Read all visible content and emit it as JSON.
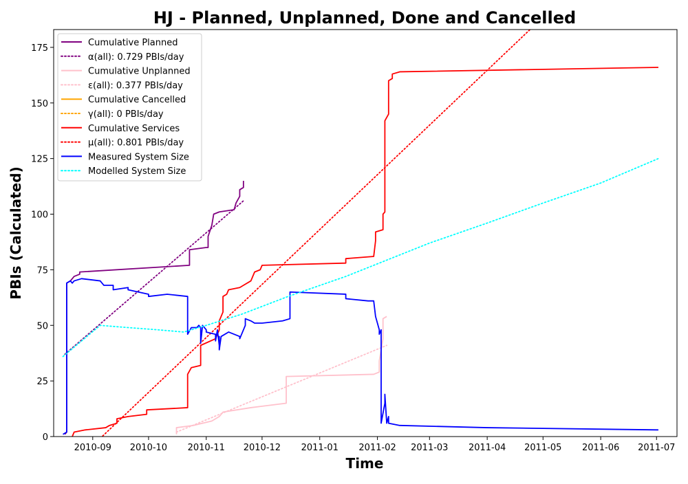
{
  "chart_data": {
    "type": "line",
    "title": "HJ - Planned, Unplanned, Done  and Cancelled",
    "xlabel": "Time",
    "ylabel": "PBIs (Calculated)",
    "xlim": [
      "2010-08-11",
      "2011-07-12"
    ],
    "ylim": [
      0,
      183
    ],
    "x_ticks": [
      {
        "date": "2010-09-01",
        "label": "2010-09"
      },
      {
        "date": "2010-10-01",
        "label": "2010-10"
      },
      {
        "date": "2010-11-01",
        "label": "2010-11"
      },
      {
        "date": "2010-12-01",
        "label": "2010-12"
      },
      {
        "date": "2011-01-01",
        "label": "2011-01"
      },
      {
        "date": "2011-02-01",
        "label": "2011-02"
      },
      {
        "date": "2011-03-01",
        "label": "2011-03"
      },
      {
        "date": "2011-04-01",
        "label": "2011-04"
      },
      {
        "date": "2011-05-01",
        "label": "2011-05"
      },
      {
        "date": "2011-06-01",
        "label": "2011-06"
      },
      {
        "date": "2011-07-01",
        "label": "2011-07"
      }
    ],
    "y_ticks": [
      {
        "value": 0,
        "label": "0"
      },
      {
        "value": 25,
        "label": "25"
      },
      {
        "value": 50,
        "label": "50"
      },
      {
        "value": 75,
        "label": "75"
      },
      {
        "value": 100,
        "label": "100"
      },
      {
        "value": 125,
        "label": "125"
      },
      {
        "value": 150,
        "label": "150"
      },
      {
        "value": 175,
        "label": "175"
      }
    ],
    "legend_position": "top-left",
    "series": [
      {
        "name": "Cumulative Planned",
        "color": "#800080",
        "style": "solid",
        "width": 1.8,
        "points": [
          [
            "2010-08-17",
            1
          ],
          [
            "2010-08-18",
            2
          ],
          [
            "2010-08-18",
            69
          ],
          [
            "2010-08-20",
            70
          ],
          [
            "2010-08-22",
            72
          ],
          [
            "2010-08-25",
            73
          ],
          [
            "2010-08-25",
            74
          ],
          [
            "2010-10-23",
            77
          ],
          [
            "2010-10-23",
            84
          ],
          [
            "2010-11-01",
            85
          ],
          [
            "2010-11-02",
            85
          ],
          [
            "2010-11-02",
            90
          ],
          [
            "2010-11-04",
            95
          ],
          [
            "2010-11-05",
            100
          ],
          [
            "2010-11-08",
            101
          ],
          [
            "2010-11-16",
            102
          ],
          [
            "2010-11-17",
            105
          ],
          [
            "2010-11-19",
            108
          ],
          [
            "2010-11-19",
            111
          ],
          [
            "2010-11-21",
            112
          ],
          [
            "2010-11-21",
            115
          ]
        ]
      },
      {
        "name": "α(all): 0.729 PBIs/day",
        "color": "#800080",
        "style": "dotted",
        "width": 1.8,
        "points": [
          [
            "2010-08-17",
            37
          ],
          [
            "2010-11-21",
            106
          ]
        ]
      },
      {
        "name": "Cumulative Unplanned",
        "color": "#ffc0cb",
        "style": "solid",
        "width": 1.8,
        "points": [
          [
            "2010-10-16",
            1
          ],
          [
            "2010-10-16",
            4
          ],
          [
            "2010-10-25",
            5
          ],
          [
            "2010-11-04",
            7
          ],
          [
            "2010-11-06",
            8
          ],
          [
            "2010-11-08",
            9
          ],
          [
            "2010-11-10",
            11
          ],
          [
            "2010-11-25",
            13
          ],
          [
            "2010-12-14",
            15
          ],
          [
            "2010-12-14",
            27
          ],
          [
            "2011-01-30",
            28
          ],
          [
            "2011-02-02",
            29
          ],
          [
            "2011-02-02",
            34
          ],
          [
            "2011-02-04",
            44
          ],
          [
            "2011-02-04",
            53
          ],
          [
            "2011-02-06",
            54
          ]
        ]
      },
      {
        "name": "ε(all): 0.377 PBIs/day",
        "color": "#ffc0cb",
        "style": "dotted",
        "width": 1.8,
        "points": [
          [
            "2010-10-16",
            2
          ],
          [
            "2011-02-06",
            41
          ]
        ]
      },
      {
        "name": "Cumulative Cancelled",
        "color": "#ffa500",
        "style": "solid",
        "width": 1.8,
        "points": []
      },
      {
        "name": "γ(all): 0 PBIs/day",
        "color": "#ffa500",
        "style": "dotted",
        "width": 1.8,
        "points": []
      },
      {
        "name": "Cumulative Services",
        "color": "#ff0000",
        "style": "solid",
        "width": 1.8,
        "points": [
          [
            "2010-08-21",
            0
          ],
          [
            "2010-08-22",
            2
          ],
          [
            "2010-08-28",
            3
          ],
          [
            "2010-09-08",
            4
          ],
          [
            "2010-09-10",
            5
          ],
          [
            "2010-09-14",
            6
          ],
          [
            "2010-09-14",
            8
          ],
          [
            "2010-09-20",
            9
          ],
          [
            "2010-09-30",
            10
          ],
          [
            "2010-09-30",
            12
          ],
          [
            "2010-10-22",
            13
          ],
          [
            "2010-10-22",
            28
          ],
          [
            "2010-10-24",
            31
          ],
          [
            "2010-10-29",
            32
          ],
          [
            "2010-10-29",
            41
          ],
          [
            "2010-11-06",
            44
          ],
          [
            "2010-11-08",
            48
          ],
          [
            "2010-11-08",
            52
          ],
          [
            "2010-11-10",
            56
          ],
          [
            "2010-11-10",
            63
          ],
          [
            "2010-11-12",
            64
          ],
          [
            "2010-11-13",
            66
          ],
          [
            "2010-11-19",
            67
          ],
          [
            "2010-11-21",
            68
          ],
          [
            "2010-11-25",
            70
          ],
          [
            "2010-11-27",
            74
          ],
          [
            "2010-11-30",
            75
          ],
          [
            "2010-12-01",
            77
          ],
          [
            "2011-01-15",
            78
          ],
          [
            "2011-01-15",
            80
          ],
          [
            "2011-01-30",
            81
          ],
          [
            "2011-01-31",
            88
          ],
          [
            "2011-01-31",
            92
          ],
          [
            "2011-02-04",
            93
          ],
          [
            "2011-02-04",
            100
          ],
          [
            "2011-02-05",
            101
          ],
          [
            "2011-02-05",
            142
          ],
          [
            "2011-02-07",
            145
          ],
          [
            "2011-02-07",
            160
          ],
          [
            "2011-02-09",
            161
          ],
          [
            "2011-02-09",
            163
          ],
          [
            "2011-02-13",
            164
          ],
          [
            "2011-07-02",
            166
          ]
        ]
      },
      {
        "name": "μ(all): 0.801 PBIs/day",
        "color": "#ff0000",
        "style": "dotted",
        "width": 1.8,
        "points": [
          [
            "2010-09-01",
            -4
          ],
          [
            "2011-04-24",
            183
          ]
        ]
      },
      {
        "name": "Measured System Size",
        "color": "#0000ff",
        "style": "solid",
        "width": 1.8,
        "points": [
          [
            "2010-08-16",
            1
          ],
          [
            "2010-08-18",
            2
          ],
          [
            "2010-08-18",
            69
          ],
          [
            "2010-08-20",
            70
          ],
          [
            "2010-08-21",
            69
          ],
          [
            "2010-08-22",
            70
          ],
          [
            "2010-08-26",
            71
          ],
          [
            "2010-09-05",
            70
          ],
          [
            "2010-09-07",
            68
          ],
          [
            "2010-09-12",
            68
          ],
          [
            "2010-09-12",
            66
          ],
          [
            "2010-09-20",
            67
          ],
          [
            "2010-09-20",
            66
          ],
          [
            "2010-10-01",
            64
          ],
          [
            "2010-10-01",
            63
          ],
          [
            "2010-10-11",
            64
          ],
          [
            "2010-10-22",
            63
          ],
          [
            "2010-10-22",
            48
          ],
          [
            "2010-10-22",
            46
          ],
          [
            "2010-10-24",
            49
          ],
          [
            "2010-10-27",
            49
          ],
          [
            "2010-10-28",
            50
          ],
          [
            "2010-10-29",
            49
          ],
          [
            "2010-10-29",
            42
          ],
          [
            "2010-10-30",
            50
          ],
          [
            "2010-11-01",
            48
          ],
          [
            "2010-11-01",
            47
          ],
          [
            "2010-11-06",
            46
          ],
          [
            "2010-11-06",
            43
          ],
          [
            "2010-11-07",
            48
          ],
          [
            "2010-11-08",
            41
          ],
          [
            "2010-11-08",
            45
          ],
          [
            "2010-11-08",
            39
          ],
          [
            "2010-11-09",
            45
          ],
          [
            "2010-11-13",
            47
          ],
          [
            "2010-11-16",
            46
          ],
          [
            "2010-11-19",
            45
          ],
          [
            "2010-11-19",
            44
          ],
          [
            "2010-11-22",
            50
          ],
          [
            "2010-11-22",
            53
          ],
          [
            "2010-11-25",
            52
          ],
          [
            "2010-11-27",
            51
          ],
          [
            "2010-12-01",
            51
          ],
          [
            "2010-12-12",
            52
          ],
          [
            "2010-12-16",
            53
          ],
          [
            "2010-12-16",
            65
          ],
          [
            "2011-01-15",
            64
          ],
          [
            "2011-01-15",
            62
          ],
          [
            "2011-01-27",
            61
          ],
          [
            "2011-01-30",
            61
          ],
          [
            "2011-01-31",
            54
          ],
          [
            "2011-02-01",
            51
          ],
          [
            "2011-02-02",
            48
          ],
          [
            "2011-02-02",
            46
          ],
          [
            "2011-02-03",
            48
          ],
          [
            "2011-02-03",
            6
          ],
          [
            "2011-02-05",
            15
          ],
          [
            "2011-02-05",
            19
          ],
          [
            "2011-02-06",
            6
          ],
          [
            "2011-02-07",
            9
          ],
          [
            "2011-02-07",
            6
          ],
          [
            "2011-02-13",
            5
          ],
          [
            "2011-04-01",
            4
          ],
          [
            "2011-07-02",
            3
          ]
        ]
      },
      {
        "name": "Modelled System Size",
        "color": "#00ffff",
        "style": "dotted",
        "width": 1.8,
        "points": [
          [
            "2010-08-16",
            36
          ],
          [
            "2010-09-05",
            50
          ],
          [
            "2010-09-20",
            49
          ],
          [
            "2010-10-06",
            48
          ],
          [
            "2010-10-20",
            47
          ],
          [
            "2010-11-01",
            50
          ],
          [
            "2010-11-20",
            55
          ],
          [
            "2010-12-15",
            63
          ],
          [
            "2011-01-15",
            72
          ],
          [
            "2011-02-05",
            79
          ],
          [
            "2011-03-01",
            87
          ],
          [
            "2011-04-01",
            96
          ],
          [
            "2011-05-01",
            105
          ],
          [
            "2011-06-01",
            114
          ],
          [
            "2011-07-02",
            125
          ]
        ]
      }
    ]
  }
}
